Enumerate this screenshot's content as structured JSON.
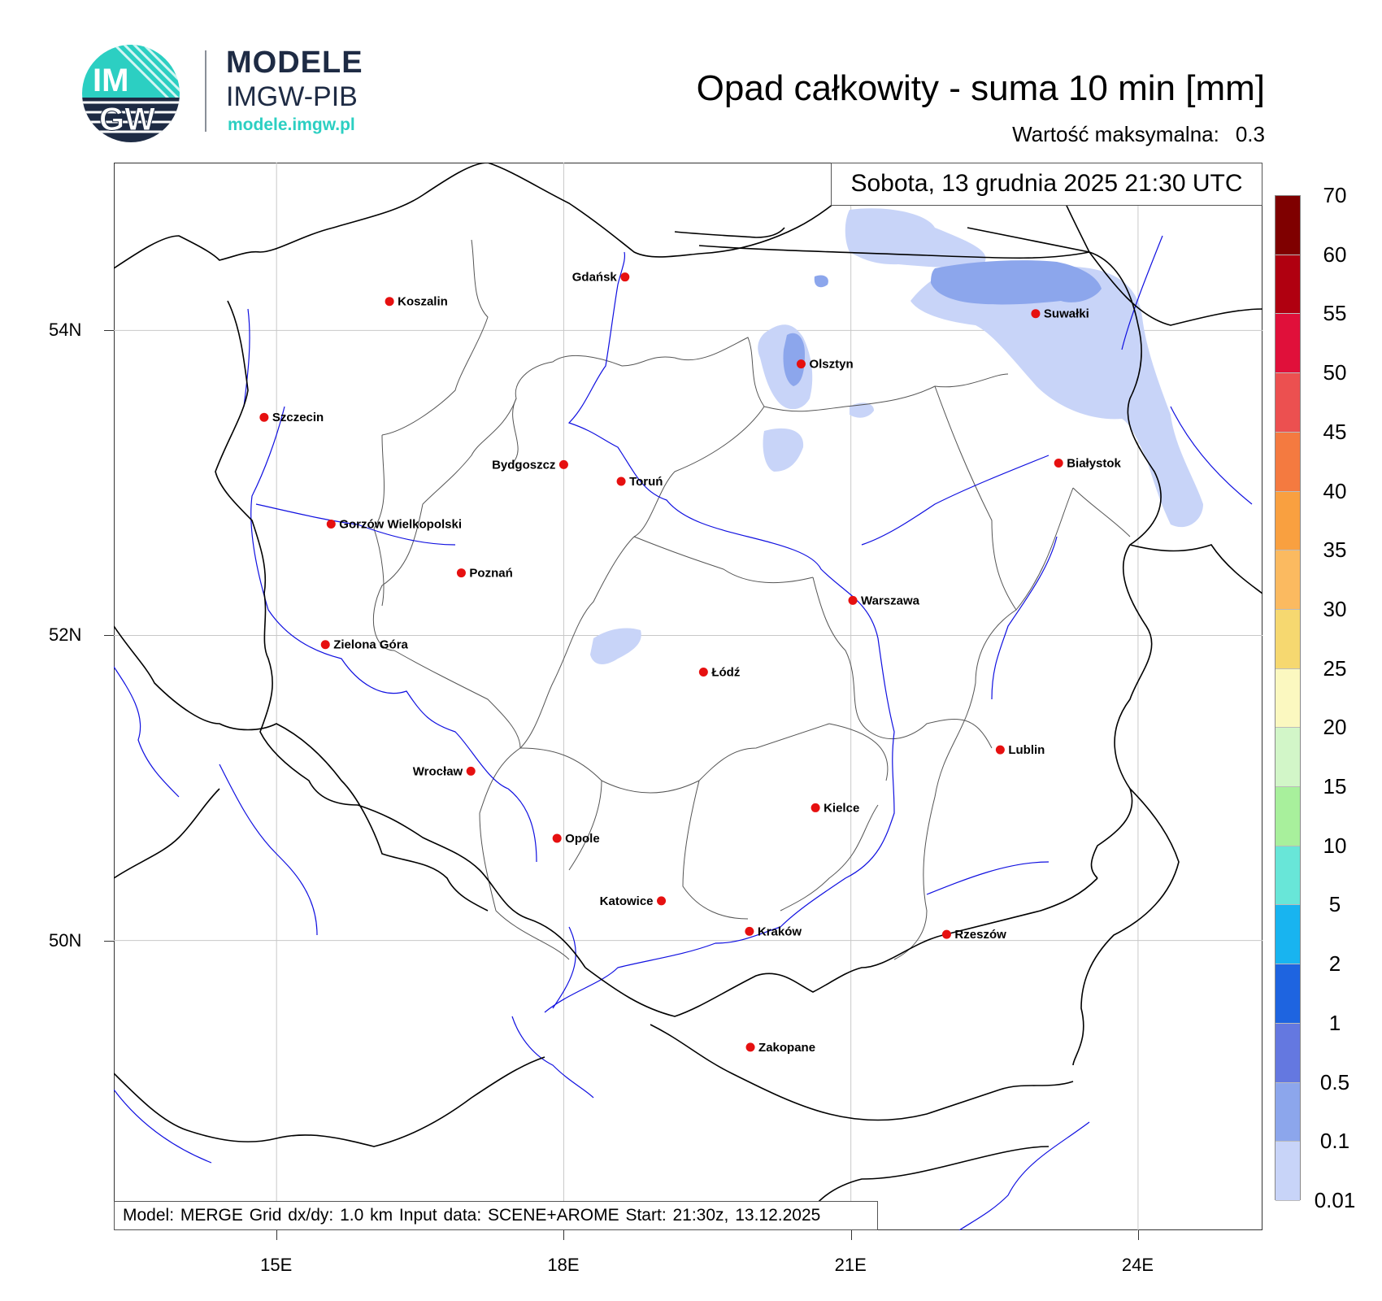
{
  "logo": {
    "circle_text_top": "IM",
    "circle_text_bottom": "GW",
    "line1": "MODELE",
    "line2": "IMGW-PIB",
    "line3": "modele.imgw.pl"
  },
  "title": "Opad całkowity - suma 10 min [mm]",
  "max_value": {
    "label": "Wartość maksymalna:",
    "value": "0.3"
  },
  "date_label": "Sobota, 13 grudnia 2025 21:30 UTC",
  "info_bar": "Model: MERGE   Grid dx/dy: 1.0 km   Input data: SCENE+AROME   Start: 21:30z, 13.12.2025",
  "map": {
    "lon_range": [
      13.3,
      25.3
    ],
    "lat_range": [
      48.1,
      55.1
    ],
    "lat_labels": [
      {
        "text": "54N",
        "lat": 54
      },
      {
        "text": "52N",
        "lat": 52
      },
      {
        "text": "50N",
        "lat": 50
      }
    ],
    "lon_labels": [
      {
        "text": "15E",
        "lon": 15
      },
      {
        "text": "18E",
        "lon": 18
      },
      {
        "text": "21E",
        "lon": 21
      },
      {
        "text": "24E",
        "lon": 24
      }
    ],
    "cities": [
      {
        "name": "Gdańsk",
        "lon": 18.64,
        "lat": 54.35,
        "anchor": "left"
      },
      {
        "name": "Koszalin",
        "lon": 16.18,
        "lat": 54.19,
        "anchor": "right"
      },
      {
        "name": "Szczecin",
        "lon": 14.87,
        "lat": 53.43,
        "anchor": "right"
      },
      {
        "name": "Suwałki",
        "lon": 22.93,
        "lat": 54.11,
        "anchor": "right"
      },
      {
        "name": "Olsztyn",
        "lon": 20.48,
        "lat": 53.78,
        "anchor": "right"
      },
      {
        "name": "Białystok",
        "lon": 23.17,
        "lat": 53.13,
        "anchor": "right"
      },
      {
        "name": "Bydgoszcz",
        "lon": 18.0,
        "lat": 53.12,
        "anchor": "left"
      },
      {
        "name": "Toruń",
        "lon": 18.6,
        "lat": 53.01,
        "anchor": "right"
      },
      {
        "name": "Gorzów Wielkopolski",
        "lon": 15.57,
        "lat": 52.73,
        "anchor": "right"
      },
      {
        "name": "Poznań",
        "lon": 16.93,
        "lat": 52.41,
        "anchor": "right"
      },
      {
        "name": "Warszawa",
        "lon": 21.02,
        "lat": 52.23,
        "anchor": "right"
      },
      {
        "name": "Zielona Góra",
        "lon": 15.51,
        "lat": 51.94,
        "anchor": "right"
      },
      {
        "name": "Łódź",
        "lon": 19.46,
        "lat": 51.76,
        "anchor": "right"
      },
      {
        "name": "Lublin",
        "lon": 22.56,
        "lat": 51.25,
        "anchor": "right"
      },
      {
        "name": "Wrocław",
        "lon": 17.03,
        "lat": 51.11,
        "anchor": "left"
      },
      {
        "name": "Kielce",
        "lon": 20.63,
        "lat": 50.87,
        "anchor": "right"
      },
      {
        "name": "Opole",
        "lon": 17.93,
        "lat": 50.67,
        "anchor": "right"
      },
      {
        "name": "Katowice",
        "lon": 19.02,
        "lat": 50.26,
        "anchor": "left"
      },
      {
        "name": "Kraków",
        "lon": 19.94,
        "lat": 50.06,
        "anchor": "right"
      },
      {
        "name": "Rzeszów",
        "lon": 22.0,
        "lat": 50.04,
        "anchor": "right"
      },
      {
        "name": "Zakopane",
        "lon": 19.95,
        "lat": 49.3,
        "anchor": "right"
      }
    ]
  },
  "colorbar": {
    "labels": [
      "70",
      "60",
      "55",
      "50",
      "45",
      "40",
      "35",
      "30",
      "25",
      "20",
      "15",
      "10",
      "5",
      "2",
      "1",
      "0.5",
      "0.1",
      "0.01"
    ],
    "colors": [
      "#7f0000",
      "#b00010",
      "#e0103a",
      "#ec5050",
      "#f47a40",
      "#f9a040",
      "#fbba60",
      "#f6d870",
      "#fbf8c0",
      "#d2f6c8",
      "#a8f09c",
      "#68e6d8",
      "#18b4f0",
      "#1e64e0",
      "#6478e0",
      "#8ca6ec",
      "#c8d4f8"
    ]
  },
  "colors": {
    "border": "#000000",
    "river": "#1010e0",
    "voivodeship": "#555555",
    "grid": "#c8c8c8",
    "city_dot": "#e61010"
  }
}
